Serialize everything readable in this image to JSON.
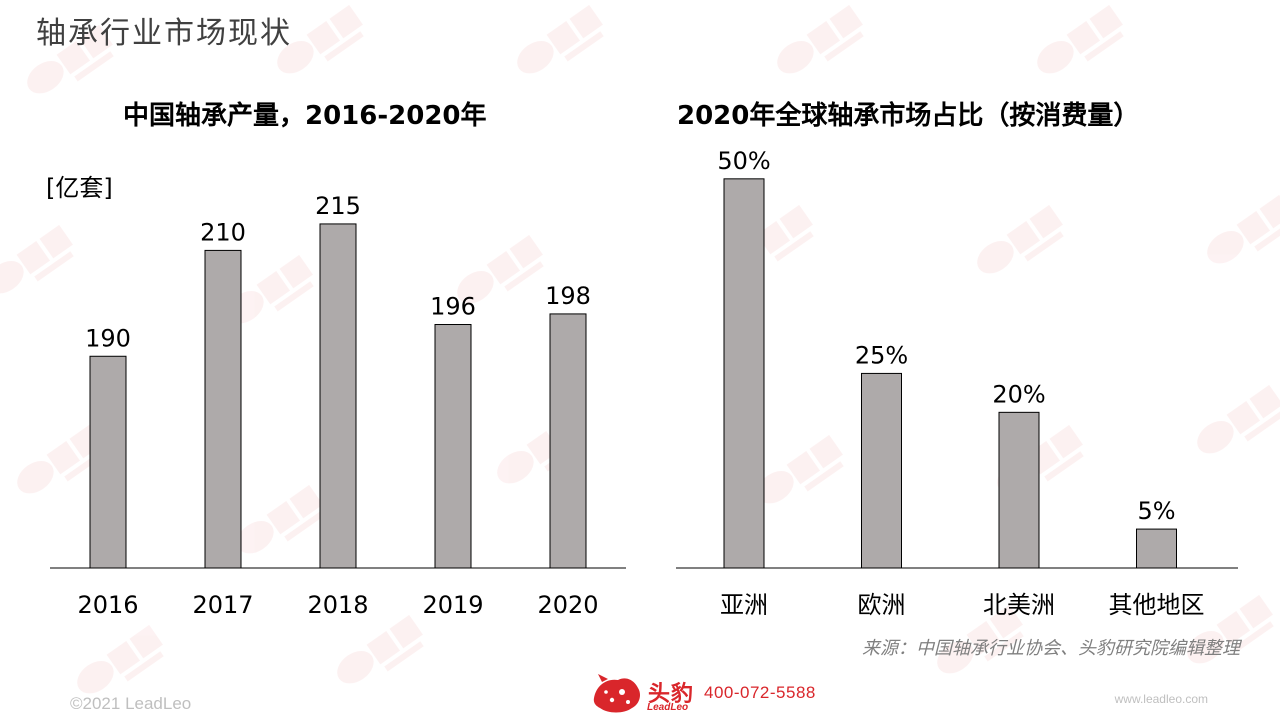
{
  "page_title": "轴承行业市场现状",
  "brand": {
    "logo_text": "头豹",
    "logo_sub": "LeadLeo",
    "phone": "400-072-5588",
    "website": "www.leadleo.com",
    "copyright": "©2021 LeadLeo",
    "accent_color": "#d9262b"
  },
  "source_note": "来源：中国轴承行业协会、头豹研究院编辑整理",
  "chart_data": [
    {
      "type": "bar",
      "title": "中国轴承产量，2016-2020年",
      "unit_label": "[亿套]",
      "categories": [
        "2016",
        "2017",
        "2018",
        "2019",
        "2020"
      ],
      "values": [
        190,
        210,
        215,
        196,
        198
      ],
      "data_labels": [
        "190",
        "210",
        "215",
        "196",
        "198"
      ],
      "bar_color": "#aeaaaa",
      "ylim": [
        150,
        225
      ],
      "grid": false
    },
    {
      "type": "bar",
      "title": "2020年全球轴承市场占比（按消费量）",
      "categories": [
        "亚洲",
        "欧洲",
        "北美洲",
        "其他地区"
      ],
      "values": [
        50,
        25,
        20,
        5
      ],
      "data_labels": [
        "50%",
        "25%",
        "20%",
        "5%"
      ],
      "bar_color": "#aeaaaa",
      "ylim": [
        0,
        60
      ],
      "grid": false
    }
  ]
}
